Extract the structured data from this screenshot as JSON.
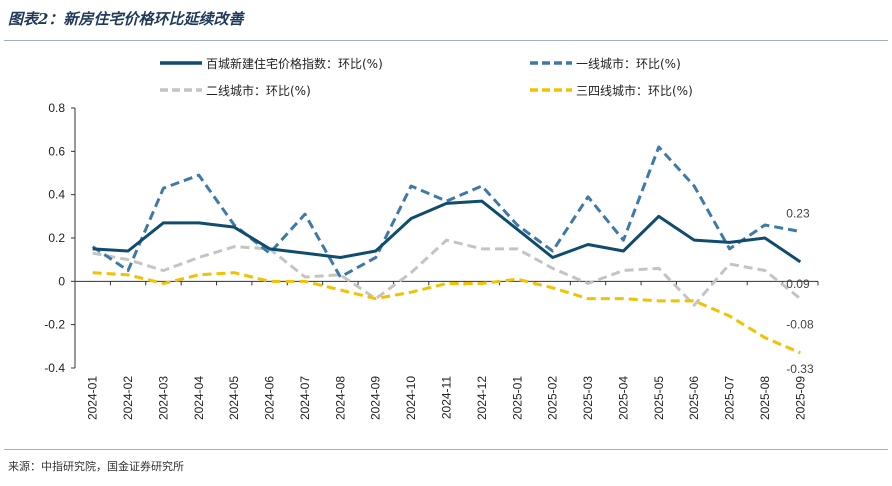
{
  "title": "图表2：新房住宅价格环比延续改善",
  "source": "来源：中指研究院，国金证券研究所",
  "chart_data": {
    "type": "line",
    "categories": [
      "2024-01",
      "2024-02",
      "2024-03",
      "2024-04",
      "2024-05",
      "2024-06",
      "2024-07",
      "2024-08",
      "2024-09",
      "2024-10",
      "2024-11",
      "2024-12",
      "2025-01",
      "2025-02",
      "2025-03",
      "2025-04",
      "2025-05",
      "2025-06",
      "2025-07",
      "2025-08",
      "2025-09"
    ],
    "ylim": [
      -0.4,
      0.8
    ],
    "yticks": [
      "0.8",
      "0.6",
      "0.4",
      "0.2",
      "0",
      "-0.2",
      "-0.4"
    ],
    "ytick_values": [
      0.8,
      0.6,
      0.4,
      0.2,
      0,
      -0.2,
      -0.4
    ],
    "legend_position": "top",
    "grid": false,
    "series": [
      {
        "name": "百城新建住宅价格指数：环比(%)",
        "color": "#0f4c6e",
        "style": "solid",
        "values": [
          0.15,
          0.14,
          0.27,
          0.27,
          0.25,
          0.15,
          0.13,
          0.11,
          0.14,
          0.29,
          0.36,
          0.37,
          0.24,
          0.11,
          0.17,
          0.14,
          0.3,
          0.19,
          0.18,
          0.2,
          0.09
        ],
        "end_label": "0.09"
      },
      {
        "name": "一线城市：环比(%)",
        "color": "#3f79a8",
        "style": "dash",
        "values": [
          0.16,
          0.05,
          0.43,
          0.49,
          0.26,
          0.13,
          0.31,
          0.02,
          0.11,
          0.44,
          0.37,
          0.44,
          0.26,
          0.14,
          0.39,
          0.19,
          0.62,
          0.44,
          0.15,
          0.26,
          0.23
        ],
        "end_label": "0.23"
      },
      {
        "name": "二线城市：环比(%)",
        "color": "#c4c4c4",
        "style": "dash",
        "values": [
          0.13,
          0.1,
          0.05,
          0.11,
          0.16,
          0.15,
          0.02,
          0.03,
          -0.08,
          0.04,
          0.19,
          0.15,
          0.15,
          0.06,
          -0.01,
          0.05,
          0.06,
          -0.11,
          0.08,
          0.05,
          -0.08
        ],
        "end_label": "-0.08"
      },
      {
        "name": "三四线城市：环比(%)",
        "color": "#f2c200",
        "style": "dash",
        "values": [
          0.04,
          0.03,
          -0.01,
          0.03,
          0.04,
          0.0,
          0.0,
          -0.04,
          -0.08,
          -0.05,
          -0.01,
          -0.01,
          0.01,
          -0.03,
          -0.08,
          -0.08,
          -0.09,
          -0.09,
          -0.16,
          -0.26,
          -0.33
        ],
        "end_label": "-0.33"
      }
    ]
  }
}
